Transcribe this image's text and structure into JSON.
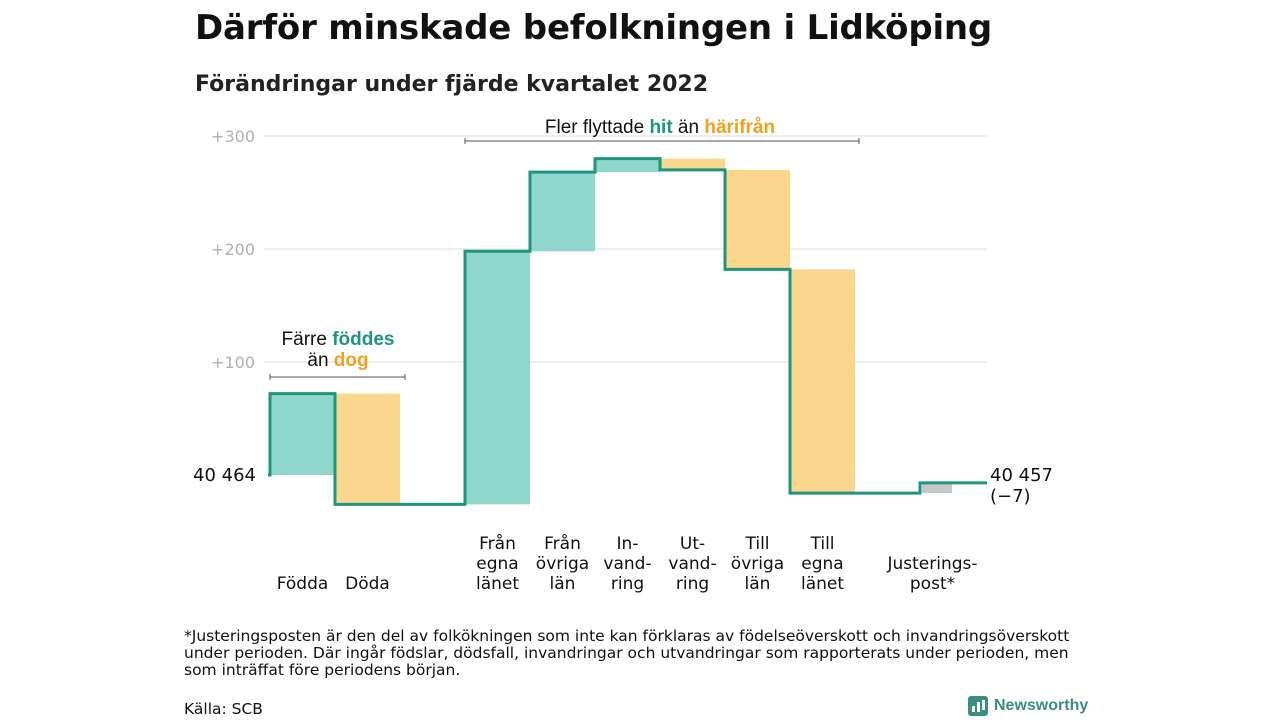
{
  "title": "Därför minskade befolkningen i Lidköping",
  "subtitle": "Förändringar under fjärde kvartalet 2022",
  "colors": {
    "in": "#8fd6cc",
    "out": "#fad78d",
    "line": "#1f9580",
    "adjust": "#c8c8c8",
    "accent_in": "#1f9580",
    "accent_out": "#eea21e"
  },
  "chart_data": {
    "type": "waterfall",
    "title": "Därför minskade befolkningen i Lidköping",
    "subtitle": "Förändringar under fjärde kvartalet 2022",
    "ylabel": "",
    "ylim": [
      -27,
      308
    ],
    "yticks": [
      100,
      200,
      300
    ],
    "ytick_labels": [
      "+100",
      "+200",
      "+300"
    ],
    "grid": true,
    "start_label": "40 464",
    "end_label": "40 457",
    "end_change_label": "(−7)",
    "categories": [
      {
        "label": [
          "Födda"
        ],
        "value": 72,
        "kind": "in"
      },
      {
        "label": [
          "Döda"
        ],
        "value": -98,
        "kind": "out"
      },
      {
        "label": [],
        "value": 0,
        "kind": "gap"
      },
      {
        "label": [
          "Från",
          "egna",
          "länet"
        ],
        "value": 224,
        "kind": "in"
      },
      {
        "label": [
          "Från",
          "övriga",
          "län"
        ],
        "value": 70,
        "kind": "in"
      },
      {
        "label": [
          "In-",
          "vand-",
          "ring"
        ],
        "value": 12,
        "kind": "in"
      },
      {
        "label": [
          "Ut-",
          "vand-",
          "ring"
        ],
        "value": -10,
        "kind": "out"
      },
      {
        "label": [
          "Till",
          "övriga",
          "län"
        ],
        "value": -88,
        "kind": "out"
      },
      {
        "label": [
          "Till",
          "egna",
          "länet"
        ],
        "value": -198,
        "kind": "out"
      },
      {
        "label": [],
        "value": 0,
        "kind": "gap"
      },
      {
        "label": [
          "Justerings-",
          "post*"
        ],
        "value": 9,
        "kind": "adjust"
      }
    ],
    "annotations": [
      {
        "parts": [
          {
            "text": "Färre ",
            "style": "plain"
          },
          {
            "text": "föddes",
            "style": "in"
          },
          {
            "text": "än ",
            "style": "plain",
            "newline": true
          },
          {
            "text": "dog",
            "style": "out"
          }
        ]
      },
      {
        "parts": [
          {
            "text": "Fler flyttade ",
            "style": "plain"
          },
          {
            "text": "hit",
            "style": "in"
          },
          {
            "text": " än ",
            "style": "plain"
          },
          {
            "text": "härifrån",
            "style": "out"
          }
        ]
      }
    ]
  },
  "footnote": "*Justeringsposten är den del av folkökningen som inte kan förklaras av födelseöverskott och invandringsöverskott under perioden. Där ingår födslar, dödsfall, invandringar och utvandringar som rapporterats under perioden, men som inträffat före periodens början.",
  "source": "Källa: SCB",
  "brand": "Newsworthy"
}
